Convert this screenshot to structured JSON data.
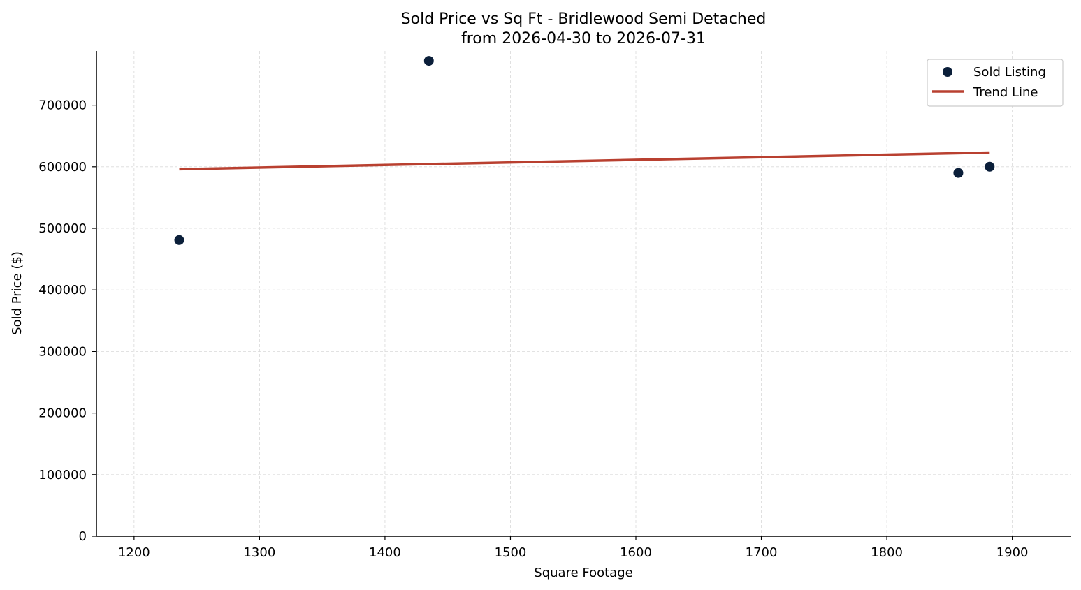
{
  "chart_data": {
    "type": "scatter",
    "title": "Sold Price vs Sq Ft - Bridlewood Semi Detached",
    "subtitle": "from 2026-04-30 to 2026-07-31",
    "xlabel": "Square Footage",
    "ylabel": "Sold Price ($)",
    "xlim": [
      1170,
      1947
    ],
    "ylim": [
      0,
      788000
    ],
    "xticks": [
      1200,
      1300,
      1400,
      1500,
      1600,
      1700,
      1800,
      1900
    ],
    "yticks": [
      0,
      100000,
      200000,
      300000,
      400000,
      500000,
      600000,
      700000
    ],
    "grid": true,
    "legend_position": "top-right",
    "series": [
      {
        "name": "Sold Listing",
        "kind": "scatter",
        "color": "#0b1f3a",
        "x": [
          1236,
          1435,
          1857,
          1882
        ],
        "y": [
          481000,
          772000,
          590000,
          600000
        ]
      },
      {
        "name": "Trend Line",
        "kind": "line",
        "color": "#b94030",
        "x": [
          1236,
          1882
        ],
        "y": [
          596000,
          623000
        ]
      }
    ]
  }
}
